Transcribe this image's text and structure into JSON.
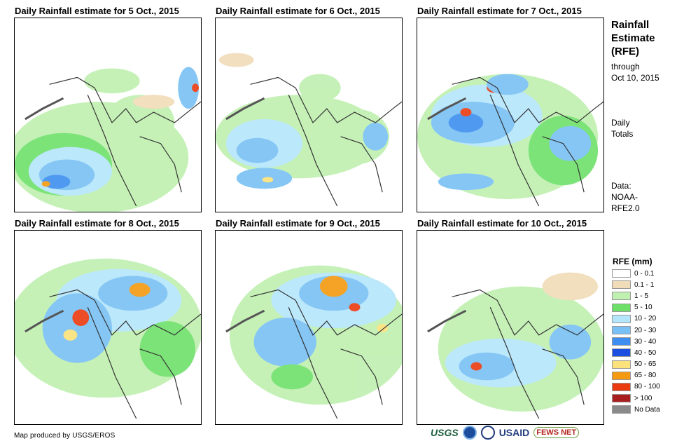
{
  "panels": [
    {
      "title": "Daily Rainfall estimate for 5 Oct., 2015"
    },
    {
      "title": "Daily Rainfall estimate for 6 Oct., 2015"
    },
    {
      "title": "Daily Rainfall estimate for 7 Oct., 2015"
    },
    {
      "title": "Daily Rainfall estimate for 8 Oct., 2015"
    },
    {
      "title": "Daily Rainfall estimate for 9 Oct., 2015"
    },
    {
      "title": "Daily Rainfall estimate for 10 Oct., 2015"
    }
  ],
  "sidebar": {
    "title_line1": "Rainfall",
    "title_line2": "Estimate",
    "title_line3": "(RFE)",
    "through_line1": "through",
    "through_line2": "Oct 10, 2015",
    "daily_line1": "Daily",
    "daily_line2": "Totals",
    "data_line1": "Data:",
    "data_line2": "NOAA-",
    "data_line3": "RFE2.0"
  },
  "legend": {
    "title": "RFE (mm)",
    "items": [
      {
        "label": "0 - 0.1",
        "color": "#ffffff"
      },
      {
        "label": "0.1 - 1",
        "color": "#f0dcb8"
      },
      {
        "label": "1 - 5",
        "color": "#bff0b0"
      },
      {
        "label": "5 - 10",
        "color": "#6ee06a"
      },
      {
        "label": "10 - 20",
        "color": "#b4e6fb"
      },
      {
        "label": "20 - 30",
        "color": "#78c0f5"
      },
      {
        "label": "30 - 40",
        "color": "#3d8ef0"
      },
      {
        "label": "40 - 50",
        "color": "#1c4fe0"
      },
      {
        "label": "50 - 65",
        "color": "#fbe27a"
      },
      {
        "label": "65 - 80",
        "color": "#f59a10"
      },
      {
        "label": "80 - 100",
        "color": "#ea3a10"
      },
      {
        "label": "> 100",
        "color": "#a81e1e"
      },
      {
        "label": "No Data",
        "color": "#8a8a8a"
      }
    ]
  },
  "footer": {
    "credit": "Map produced by USGS/EROS",
    "logo_usgs": "USGS",
    "logo_usaid": "USAID",
    "logo_fews": "FEWS NET"
  }
}
